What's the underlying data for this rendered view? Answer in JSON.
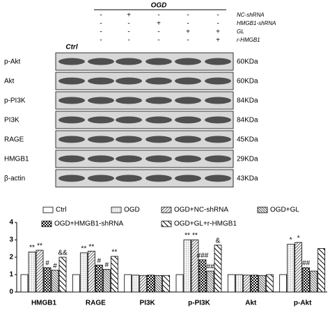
{
  "blot": {
    "group": "OGD",
    "ctrl": "Ctrl",
    "conditions": [
      {
        "name": "NC-shRNA",
        "signs": [
          "-",
          "+",
          "-",
          "-",
          "-"
        ]
      },
      {
        "name": "HMGB1-shRNA",
        "signs": [
          "-",
          "-",
          "+",
          "-",
          "-"
        ]
      },
      {
        "name": "GL",
        "signs": [
          "-",
          "-",
          "-",
          "+",
          "+"
        ]
      },
      {
        "name": "r-HMGB1",
        "signs": [
          "-",
          "-",
          "-",
          "-",
          "+"
        ]
      }
    ],
    "rows": [
      {
        "name": "p-Akt",
        "size": "60KDa"
      },
      {
        "name": "Akt",
        "size": "60KDa"
      },
      {
        "name": "p-PI3K",
        "size": "84KDa"
      },
      {
        "name": "PI3K",
        "size": "84KDa"
      },
      {
        "name": "RAGE",
        "size": "45KDa"
      },
      {
        "name": "HMGB1",
        "size": "29KDa"
      },
      {
        "name": "β-actin",
        "size": "43KDa"
      }
    ]
  },
  "chart_data": {
    "type": "bar",
    "categories": [
      "HMGB1",
      "RAGE",
      "PI3K",
      "p-PI3K",
      "Akt",
      "p-Akt"
    ],
    "series": [
      {
        "name": "Ctrl",
        "color": "#ffffff",
        "values": [
          1,
          1,
          1,
          1,
          1,
          1
        ],
        "significance": [
          null,
          null,
          null,
          null,
          null,
          null
        ]
      },
      {
        "name": "OGD",
        "color": "#eeeeee",
        "values": [
          2.3,
          2.25,
          0.97,
          3.0,
          1.0,
          2.75
        ],
        "significance": [
          "**",
          "**",
          null,
          "**",
          null,
          "*"
        ]
      },
      {
        "name": "OGD+NC-shRNA",
        "color": "#999999",
        "values": [
          2.4,
          2.35,
          0.95,
          3.0,
          0.97,
          2.85
        ],
        "significance": [
          "**",
          "**",
          null,
          "**",
          null,
          "*"
        ]
      },
      {
        "name": "OGD+HMGB1-shRNA",
        "color": "#555555",
        "values": [
          1.4,
          1.55,
          0.97,
          1.85,
          0.97,
          1.4
        ],
        "significance": [
          "#",
          "#",
          null,
          "###",
          null,
          "##"
        ]
      },
      {
        "name": "OGD+GL",
        "color": "#333333",
        "values": [
          1.25,
          1.3,
          0.95,
          1.2,
          0.95,
          1.2
        ],
        "significance": [
          "#",
          "#",
          null,
          "##",
          null,
          null
        ]
      },
      {
        "name": "OGD+GL+r-HMGB1",
        "color": "#777777",
        "values": [
          2.0,
          2.05,
          0.95,
          2.7,
          1.0,
          2.5
        ],
        "significance": [
          "&&",
          "**",
          null,
          "&",
          null,
          null
        ]
      }
    ],
    "ylim": [
      0,
      4
    ],
    "yticks": [
      0,
      1,
      2,
      3,
      4
    ]
  }
}
